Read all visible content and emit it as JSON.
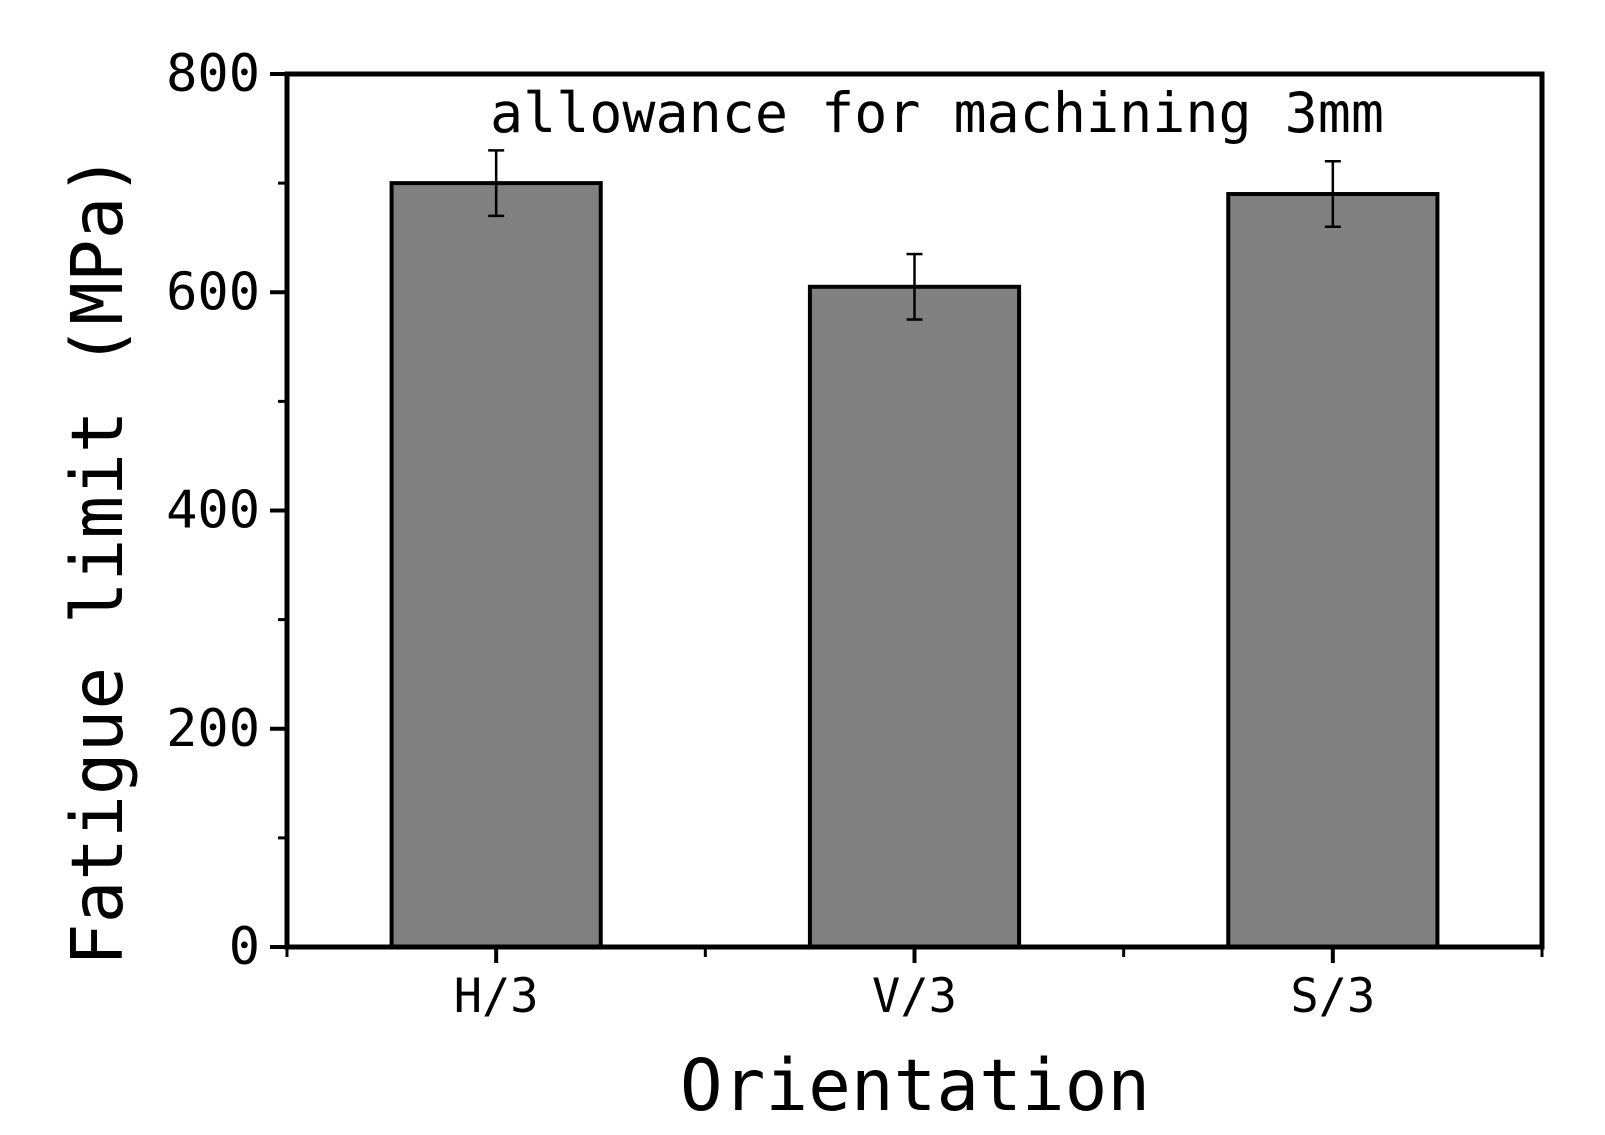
{
  "chart_data": {
    "type": "bar",
    "annotation": "allowance for machining 3mm",
    "xlabel": "Orientation",
    "ylabel": "Fatigue limit (MPa)",
    "categories": [
      "H/3",
      "V/3",
      "S/3"
    ],
    "values": [
      700,
      605,
      690
    ],
    "errors": [
      30,
      30,
      30
    ],
    "ylim": [
      0,
      800
    ],
    "ytick_major": [
      0,
      200,
      400,
      600,
      800
    ],
    "ytick_minor": [
      100,
      300,
      500,
      700
    ],
    "ytick_labels": [
      "0",
      "200",
      "400",
      "600",
      "800"
    ],
    "bar_fill": "#808080",
    "bar_stroke": "#000000",
    "frame_color": "#000000",
    "background": "#ffffff",
    "grid": false,
    "legend_position": "none"
  }
}
